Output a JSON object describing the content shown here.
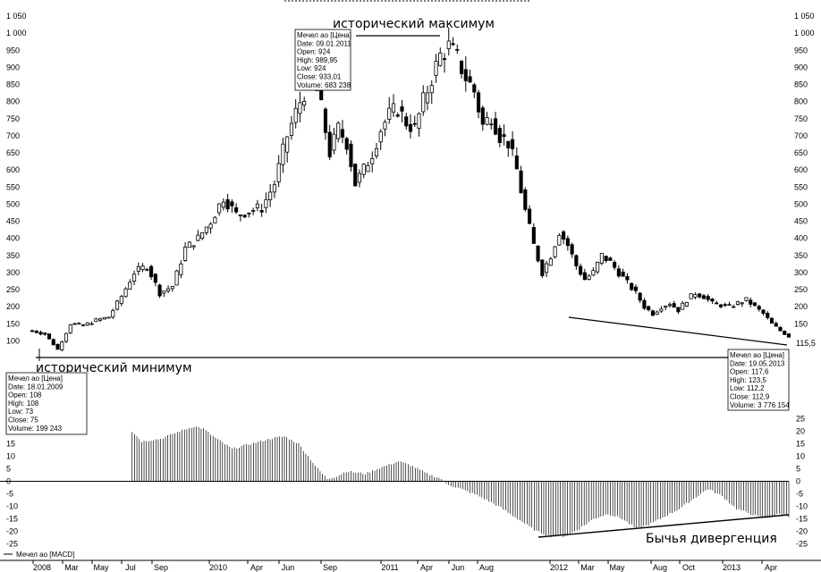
{
  "chart_data": [
    {
      "type": "candlestick",
      "title": "Мечел ао [Цена]",
      "annotations": {
        "high_label": "исторический максимум",
        "low_label": "исторический минимум",
        "divergence_label": "Бычья дивергенция"
      },
      "y_ticks": [
        100,
        150,
        200,
        250,
        300,
        350,
        400,
        450,
        500,
        550,
        600,
        650,
        700,
        750,
        800,
        850,
        900,
        950,
        1000,
        1050
      ],
      "y_tick_labels": [
        "100",
        "150",
        "200",
        "250",
        "300",
        "350",
        "400",
        "450",
        "500",
        "550",
        "600",
        "650",
        "700",
        "750",
        "800",
        "850",
        "900",
        "950",
        "1 000",
        "1 050"
      ],
      "ylim": [
        75,
        1050
      ],
      "last_price_label": "115,5",
      "x_tick_labels": [
        "2008",
        "Mar",
        "May",
        "Jul",
        "Sep",
        "2010",
        "Apr",
        "Jun",
        "Sep",
        "2011",
        "Apr",
        "Jun",
        "Aug",
        "2012",
        "Mar",
        "May",
        "Aug",
        "Oct",
        "2013",
        "Apr"
      ],
      "price_path_weekly_close": [
        [
          0,
          130
        ],
        [
          3,
          120
        ],
        [
          6,
          75
        ],
        [
          9,
          150
        ],
        [
          12,
          145
        ],
        [
          15,
          160
        ],
        [
          18,
          170
        ],
        [
          21,
          230
        ],
        [
          24,
          300
        ],
        [
          27,
          320
        ],
        [
          30,
          240
        ],
        [
          33,
          260
        ],
        [
          36,
          370
        ],
        [
          39,
          400
        ],
        [
          42,
          450
        ],
        [
          45,
          520
        ],
        [
          48,
          470
        ],
        [
          51,
          480
        ],
        [
          54,
          490
        ],
        [
          57,
          560
        ],
        [
          60,
          700
        ],
        [
          63,
          800
        ],
        [
          66,
          880
        ],
        [
          68,
          780
        ],
        [
          70,
          650
        ],
        [
          72,
          720
        ],
        [
          74,
          680
        ],
        [
          76,
          560
        ],
        [
          78,
          600
        ],
        [
          80,
          650
        ],
        [
          82,
          720
        ],
        [
          84,
          760
        ],
        [
          86,
          780
        ],
        [
          88,
          740
        ],
        [
          90,
          720
        ],
        [
          92,
          800
        ],
        [
          94,
          870
        ],
        [
          96,
          935
        ],
        [
          98,
          960
        ],
        [
          100,
          925
        ],
        [
          102,
          870
        ],
        [
          104,
          830
        ],
        [
          106,
          730
        ],
        [
          108,
          760
        ],
        [
          110,
          700
        ],
        [
          112,
          680
        ],
        [
          114,
          600
        ],
        [
          116,
          480
        ],
        [
          118,
          380
        ],
        [
          120,
          300
        ],
        [
          122,
          350
        ],
        [
          124,
          420
        ],
        [
          126,
          380
        ],
        [
          128,
          320
        ],
        [
          130,
          280
        ],
        [
          132,
          300
        ],
        [
          134,
          350
        ],
        [
          136,
          330
        ],
        [
          138,
          300
        ],
        [
          140,
          270
        ],
        [
          142,
          240
        ],
        [
          144,
          200
        ],
        [
          146,
          180
        ],
        [
          148,
          200
        ],
        [
          150,
          210
        ],
        [
          152,
          190
        ],
        [
          154,
          220
        ],
        [
          156,
          240
        ],
        [
          158,
          230
        ],
        [
          160,
          210
        ],
        [
          162,
          205
        ],
        [
          164,
          200
        ],
        [
          166,
          210
        ],
        [
          168,
          220
        ],
        [
          170,
          200
        ],
        [
          172,
          180
        ],
        [
          174,
          150
        ],
        [
          176,
          130
        ],
        [
          178,
          113
        ]
      ],
      "info_boxes": [
        {
          "lines": [
            "Мечел ао [Цена]",
            "Date: 09.01.2011",
            "Open:  924",
            "High:   989,95",
            "Low:    924",
            "Close: 933,01",
            "Volume: 683 238"
          ]
        },
        {
          "lines": [
            "Мечел ао [Цена]",
            "Date: 18.01.2009",
            "Open: 108",
            "High:  108",
            "Low:   73",
            "Close: 75",
            "Volume: 199 243"
          ]
        },
        {
          "lines": [
            "Мечел ао [Цена]",
            "Date: 19.05.2013",
            "Open:  117,6",
            "High:   123,5",
            "Low:    112,2",
            "Close: 112,9",
            "Volume: 3 776 154"
          ]
        }
      ]
    },
    {
      "type": "bar",
      "title": "Мечел ао [MACD]",
      "y_ticks": [
        -25,
        -20,
        -15,
        -10,
        -5,
        0,
        5,
        10,
        15,
        20,
        25
      ],
      "ylim": [
        -27,
        27
      ],
      "macd_path_weekly": [
        [
          21,
          20
        ],
        [
          23,
          16
        ],
        [
          27,
          17
        ],
        [
          31,
          20
        ],
        [
          34,
          22
        ],
        [
          36,
          21
        ],
        [
          38,
          18
        ],
        [
          42,
          13
        ],
        [
          46,
          15
        ],
        [
          50,
          17
        ],
        [
          53,
          18
        ],
        [
          56,
          15
        ],
        [
          58,
          10
        ],
        [
          60,
          5
        ],
        [
          62,
          1
        ],
        [
          64,
          2
        ],
        [
          66,
          4
        ],
        [
          70,
          3
        ],
        [
          74,
          6
        ],
        [
          77,
          8
        ],
        [
          80,
          6
        ],
        [
          83,
          3
        ],
        [
          86,
          1
        ],
        [
          87,
          -1
        ],
        [
          90,
          -3
        ],
        [
          94,
          -6
        ],
        [
          98,
          -10
        ],
        [
          102,
          -15
        ],
        [
          106,
          -20
        ],
        [
          109,
          -22
        ],
        [
          112,
          -22
        ],
        [
          115,
          -19
        ],
        [
          118,
          -15
        ],
        [
          121,
          -13
        ],
        [
          124,
          -15
        ],
        [
          127,
          -19
        ],
        [
          130,
          -17
        ],
        [
          133,
          -14
        ],
        [
          136,
          -11
        ],
        [
          139,
          -7
        ],
        [
          142,
          -3
        ],
        [
          145,
          -6
        ],
        [
          148,
          -11
        ],
        [
          151,
          -13
        ],
        [
          154,
          -15
        ],
        [
          157,
          -13
        ],
        [
          159,
          -14
        ]
      ]
    }
  ]
}
